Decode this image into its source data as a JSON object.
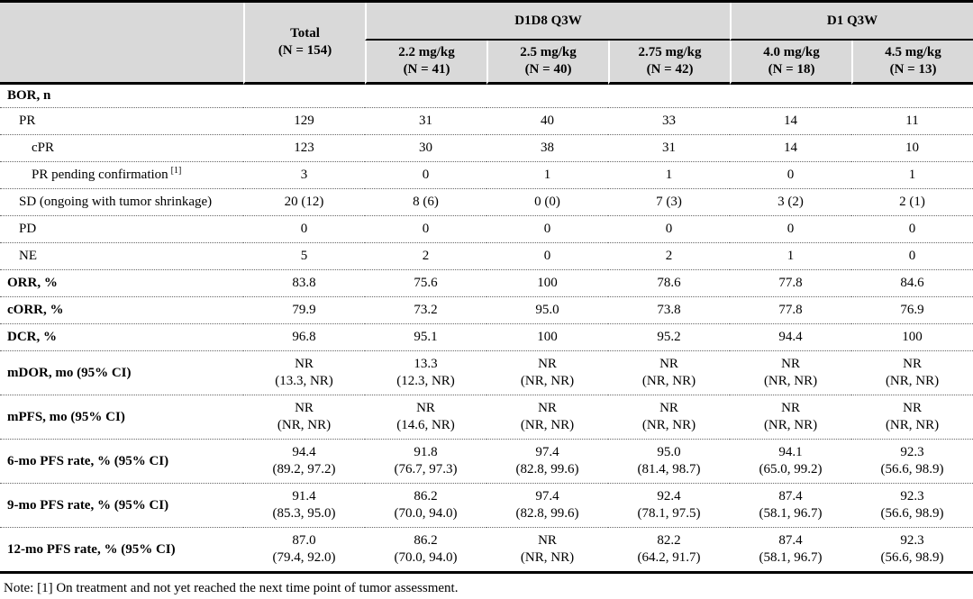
{
  "table": {
    "header": {
      "row_label_column": "",
      "total": {
        "title": "Total",
        "n": "(N = 154)"
      },
      "groups": [
        {
          "label": "D1D8 Q3W",
          "columns": [
            {
              "dose": "2.2 mg/kg",
              "n": "(N = 41)"
            },
            {
              "dose": "2.5 mg/kg",
              "n": "(N = 40)"
            },
            {
              "dose": "2.75 mg/kg",
              "n": "(N = 42)"
            }
          ]
        },
        {
          "label": "D1 Q3W",
          "columns": [
            {
              "dose": "4.0 mg/kg",
              "n": "(N = 18)"
            },
            {
              "dose": "4.5 mg/kg",
              "n": "(N = 13)"
            }
          ]
        }
      ]
    },
    "rows": [
      {
        "label": "BOR, n",
        "bold": true,
        "indent": 0,
        "short": true,
        "cells": [
          [],
          [],
          [],
          [],
          [],
          []
        ]
      },
      {
        "label": "PR",
        "bold": false,
        "indent": 1,
        "cells": [
          [
            "129"
          ],
          [
            "31"
          ],
          [
            "40"
          ],
          [
            "33"
          ],
          [
            "14"
          ],
          [
            "11"
          ]
        ]
      },
      {
        "label": "cPR",
        "bold": false,
        "indent": 2,
        "cells": [
          [
            "123"
          ],
          [
            "30"
          ],
          [
            "38"
          ],
          [
            "31"
          ],
          [
            "14"
          ],
          [
            "10"
          ]
        ]
      },
      {
        "label": "PR pending confirmation",
        "sup": "[1]",
        "bold": false,
        "indent": 2,
        "cells": [
          [
            "3"
          ],
          [
            "0"
          ],
          [
            "1"
          ],
          [
            "1"
          ],
          [
            "0"
          ],
          [
            "1"
          ]
        ]
      },
      {
        "label": "SD (ongoing with tumor shrinkage)",
        "bold": false,
        "indent": 1,
        "cells": [
          [
            "20 (12)"
          ],
          [
            "8 (6)"
          ],
          [
            "0 (0)"
          ],
          [
            "7 (3)"
          ],
          [
            "3 (2)"
          ],
          [
            "2 (1)"
          ]
        ]
      },
      {
        "label": "PD",
        "bold": false,
        "indent": 1,
        "cells": [
          [
            "0"
          ],
          [
            "0"
          ],
          [
            "0"
          ],
          [
            "0"
          ],
          [
            "0"
          ],
          [
            "0"
          ]
        ]
      },
      {
        "label": "NE",
        "bold": false,
        "indent": 1,
        "cells": [
          [
            "5"
          ],
          [
            "2"
          ],
          [
            "0"
          ],
          [
            "2"
          ],
          [
            "1"
          ],
          [
            "0"
          ]
        ]
      },
      {
        "label": "ORR, %",
        "bold": true,
        "indent": 0,
        "cells": [
          [
            "83.8"
          ],
          [
            "75.6"
          ],
          [
            "100"
          ],
          [
            "78.6"
          ],
          [
            "77.8"
          ],
          [
            "84.6"
          ]
        ]
      },
      {
        "label": "cORR, %",
        "bold": true,
        "indent": 0,
        "cells": [
          [
            "79.9"
          ],
          [
            "73.2"
          ],
          [
            "95.0"
          ],
          [
            "73.8"
          ],
          [
            "77.8"
          ],
          [
            "76.9"
          ]
        ]
      },
      {
        "label": "DCR, %",
        "bold": true,
        "indent": 0,
        "cells": [
          [
            "96.8"
          ],
          [
            "95.1"
          ],
          [
            "100"
          ],
          [
            "95.2"
          ],
          [
            "94.4"
          ],
          [
            "100"
          ]
        ]
      },
      {
        "label": "mDOR, mo (95% CI)",
        "bold": true,
        "indent": 0,
        "cells": [
          [
            "NR",
            "(13.3, NR)"
          ],
          [
            "13.3",
            "(12.3, NR)"
          ],
          [
            "NR",
            "(NR, NR)"
          ],
          [
            "NR",
            "(NR, NR)"
          ],
          [
            "NR",
            "(NR, NR)"
          ],
          [
            "NR",
            "(NR, NR)"
          ]
        ]
      },
      {
        "label": "mPFS, mo (95% CI)",
        "bold": true,
        "indent": 0,
        "cells": [
          [
            "NR",
            "(NR, NR)"
          ],
          [
            "NR",
            "(14.6, NR)"
          ],
          [
            "NR",
            "(NR, NR)"
          ],
          [
            "NR",
            "(NR, NR)"
          ],
          [
            "NR",
            "(NR, NR)"
          ],
          [
            "NR",
            "(NR, NR)"
          ]
        ]
      },
      {
        "label": "6-mo PFS rate, % (95% CI)",
        "bold": true,
        "indent": 0,
        "cells": [
          [
            "94.4",
            "(89.2, 97.2)"
          ],
          [
            "91.8",
            "(76.7, 97.3)"
          ],
          [
            "97.4",
            "(82.8, 99.6)"
          ],
          [
            "95.0",
            "(81.4, 98.7)"
          ],
          [
            "94.1",
            "(65.0, 99.2)"
          ],
          [
            "92.3",
            "(56.6, 98.9)"
          ]
        ]
      },
      {
        "label": "9-mo PFS rate, % (95% CI)",
        "bold": true,
        "indent": 0,
        "cells": [
          [
            "91.4",
            "(85.3, 95.0)"
          ],
          [
            "86.2",
            "(70.0, 94.0)"
          ],
          [
            "97.4",
            "(82.8, 99.6)"
          ],
          [
            "92.4",
            "(78.1, 97.5)"
          ],
          [
            "87.4",
            "(58.1, 96.7)"
          ],
          [
            "92.3",
            "(56.6, 98.9)"
          ]
        ]
      },
      {
        "label": "12-mo PFS rate, % (95% CI)",
        "bold": true,
        "indent": 0,
        "cells": [
          [
            "87.0",
            "(79.4, 92.0)"
          ],
          [
            "86.2",
            "(70.0, 94.0)"
          ],
          [
            "NR",
            "(NR, NR)"
          ],
          [
            "82.2",
            "(64.2, 91.7)"
          ],
          [
            "87.4",
            "(58.1, 96.7)"
          ],
          [
            "92.3",
            "(56.6, 98.9)"
          ]
        ]
      }
    ]
  },
  "note": "Note: [1] On treatment and not yet reached the next time point of tumor assessment.",
  "colors": {
    "header_bg": "#d9d9d9",
    "rule": "#000000",
    "dotted_rule": "#666666"
  }
}
